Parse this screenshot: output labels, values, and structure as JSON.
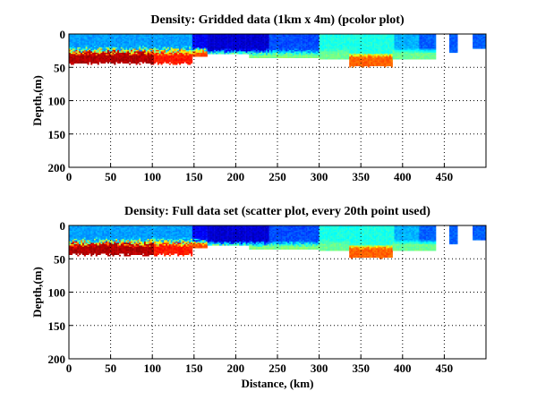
{
  "chart_data": [
    {
      "type": "heatmap",
      "title": "Density: Gridded data (1km x 4m) (pcolor plot)",
      "xlabel": "",
      "ylabel": "Depth,(m)",
      "xlim": [
        0,
        500
      ],
      "ylim": [
        200,
        0
      ],
      "xticks": [
        "0",
        "50",
        "100",
        "150",
        "200",
        "250",
        "300",
        "350",
        "400",
        "450"
      ],
      "yticks": [
        "0",
        "50",
        "100",
        "150",
        "200"
      ],
      "grid": true,
      "colormap": "jet",
      "segments_km_depth": [
        {
          "x": [
            0,
            148
          ],
          "max_depth": 45,
          "surface": "blue",
          "bottom": "red"
        },
        {
          "x": [
            148,
            165
          ],
          "max_depth": 33,
          "surface": "dark blue",
          "bottom": "orange"
        },
        {
          "x": [
            165,
            300
          ],
          "max_depth": 34,
          "surface": "dark blue",
          "bottom": "green"
        },
        {
          "x": [
            300,
            440
          ],
          "max_depth": 36,
          "surface": "cyan",
          "bottom": "green"
        },
        {
          "x": [
            335,
            388
          ],
          "max_depth": 48,
          "surface": "cyan",
          "bottom": "orange"
        },
        {
          "x": [
            456,
            466
          ],
          "max_depth": 28,
          "surface": "blue",
          "bottom": "blue"
        },
        {
          "x": [
            484,
            500
          ],
          "max_depth": 22,
          "surface": "blue",
          "bottom": "blue"
        }
      ]
    },
    {
      "type": "scatter",
      "title": "Density: Full data set (scatter plot, every 20th point used)",
      "xlabel": "Distance, (km)",
      "ylabel": "Depth,(m)",
      "xlim": [
        0,
        500
      ],
      "ylim": [
        200,
        0
      ],
      "xticks": [
        "0",
        "50",
        "100",
        "150",
        "200",
        "250",
        "300",
        "350",
        "400",
        "450"
      ],
      "yticks": [
        "0",
        "50",
        "100",
        "150",
        "200"
      ],
      "grid": true,
      "colormap": "jet"
    }
  ]
}
